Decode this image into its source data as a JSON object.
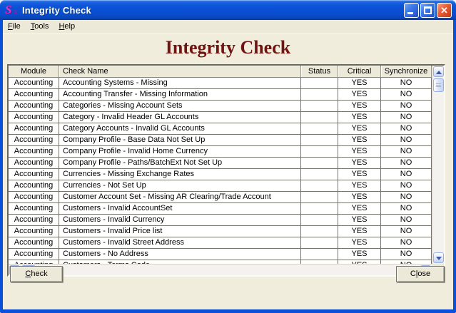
{
  "window": {
    "title": "Integrity Check",
    "icon_glyph": "S",
    "icon_sub_glyph": "x",
    "close_glyph": "✕"
  },
  "menu": {
    "items": [
      {
        "key": "file",
        "label": "File",
        "mnemonic": 0
      },
      {
        "key": "tools",
        "label": "Tools",
        "mnemonic": 0
      },
      {
        "key": "help",
        "label": "Help",
        "mnemonic": 0
      }
    ]
  },
  "heading": "Integrity Check",
  "table": {
    "columns": [
      {
        "key": "module",
        "label": "Module",
        "align": "center"
      },
      {
        "key": "check_name",
        "label": "Check Name",
        "align": "left"
      },
      {
        "key": "status",
        "label": "Status",
        "align": "center"
      },
      {
        "key": "critical",
        "label": "Critical",
        "align": "center"
      },
      {
        "key": "synchronize",
        "label": "Synchronize",
        "align": "center"
      }
    ],
    "rows": [
      {
        "module": "Accounting",
        "check_name": "Accounting Systems - Missing",
        "status": "",
        "critical": "YES",
        "synchronize": "NO"
      },
      {
        "module": "Accounting",
        "check_name": "Accounting Transfer - Missing Information",
        "status": "",
        "critical": "YES",
        "synchronize": "NO"
      },
      {
        "module": "Accounting",
        "check_name": "Categories - Missing Account Sets",
        "status": "",
        "critical": "YES",
        "synchronize": "NO"
      },
      {
        "module": "Accounting",
        "check_name": "Category - Invalid Header GL Accounts",
        "status": "",
        "critical": "YES",
        "synchronize": "NO"
      },
      {
        "module": "Accounting",
        "check_name": "Category Accounts - Invalid GL Accounts",
        "status": "",
        "critical": "YES",
        "synchronize": "NO"
      },
      {
        "module": "Accounting",
        "check_name": "Company Profile - Base Data Not Set Up",
        "status": "",
        "critical": "YES",
        "synchronize": "NO"
      },
      {
        "module": "Accounting",
        "check_name": "Company Profile - Invalid Home Currency",
        "status": "",
        "critical": "YES",
        "synchronize": "NO"
      },
      {
        "module": "Accounting",
        "check_name": "Company Profile - Paths/BatchExt Not Set Up",
        "status": "",
        "critical": "YES",
        "synchronize": "NO"
      },
      {
        "module": "Accounting",
        "check_name": "Currencies - Missing Exchange Rates",
        "status": "",
        "critical": "YES",
        "synchronize": "NO"
      },
      {
        "module": "Accounting",
        "check_name": "Currencies - Not Set Up",
        "status": "",
        "critical": "YES",
        "synchronize": "NO"
      },
      {
        "module": "Accounting",
        "check_name": "Customer Account Set - Missing AR Clearing/Trade Account",
        "status": "",
        "critical": "YES",
        "synchronize": "NO"
      },
      {
        "module": "Accounting",
        "check_name": "Customers - Invalid AccountSet",
        "status": "",
        "critical": "YES",
        "synchronize": "NO"
      },
      {
        "module": "Accounting",
        "check_name": "Customers - Invalid Currency",
        "status": "",
        "critical": "YES",
        "synchronize": "NO"
      },
      {
        "module": "Accounting",
        "check_name": "Customers - Invalid Price list",
        "status": "",
        "critical": "YES",
        "synchronize": "NO"
      },
      {
        "module": "Accounting",
        "check_name": "Customers - Invalid Street Address",
        "status": "",
        "critical": "YES",
        "synchronize": "NO"
      },
      {
        "module": "Accounting",
        "check_name": "Customers - No Address",
        "status": "",
        "critical": "YES",
        "synchronize": "NO"
      },
      {
        "module": "Accounting",
        "check_name": "Customers - Terms Code",
        "status": "",
        "critical": "YES",
        "synchronize": "NO"
      }
    ]
  },
  "buttons": {
    "check": {
      "label": "Check",
      "mnemonic": 0
    },
    "close": {
      "label": "Close",
      "mnemonic": 1
    }
  },
  "colors": {
    "titlebar_blue": "#0a50d4",
    "heading_maroon": "#701311",
    "content_cream": "#f0eddc",
    "close_red": "#d5481f"
  }
}
